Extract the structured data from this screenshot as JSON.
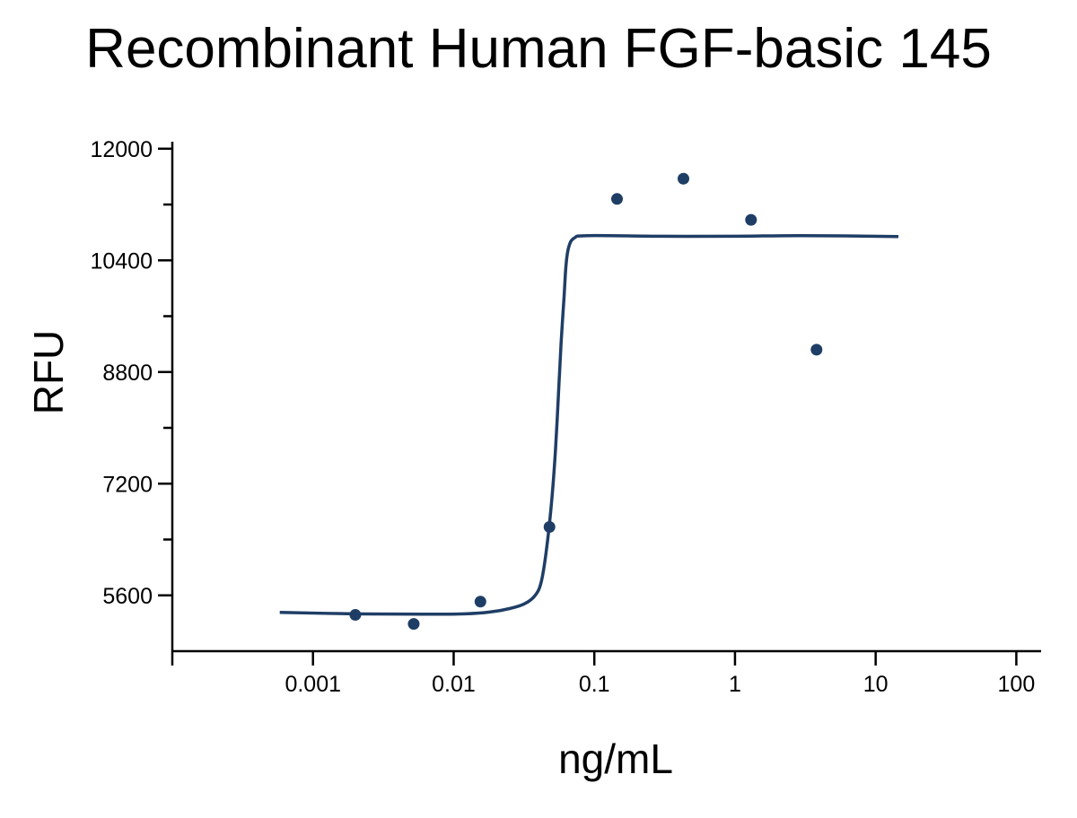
{
  "chart_data": {
    "type": "scatter",
    "title": "Recombinant Human FGF-basic 145",
    "xlabel": "ng/mL",
    "ylabel": "RFU",
    "x_scale": "log",
    "xlim": [
      0.0001,
      150
    ],
    "ylim": [
      4800,
      12100
    ],
    "x_ticks": [
      {
        "value": 0.001,
        "label": "0.001"
      },
      {
        "value": 0.01,
        "label": "0.01"
      },
      {
        "value": 0.1,
        "label": "0.1"
      },
      {
        "value": 1,
        "label": "1"
      },
      {
        "value": 10,
        "label": "10"
      },
      {
        "value": 100,
        "label": "100"
      }
    ],
    "y_ticks": [
      {
        "value": 5600,
        "label": "5600"
      },
      {
        "value": 7200,
        "label": "7200"
      },
      {
        "value": 8800,
        "label": "8800"
      },
      {
        "value": 10400,
        "label": "10400"
      },
      {
        "value": 12000,
        "label": "12000"
      }
    ],
    "y_minor_ticks": [
      6400,
      8000,
      9600,
      11200
    ],
    "points": [
      {
        "x": 0.002,
        "y": 5320
      },
      {
        "x": 0.0052,
        "y": 5190
      },
      {
        "x": 0.0155,
        "y": 5510
      },
      {
        "x": 0.048,
        "y": 6580
      },
      {
        "x": 0.145,
        "y": 11280
      },
      {
        "x": 0.43,
        "y": 11570
      },
      {
        "x": 1.3,
        "y": 10980
      },
      {
        "x": 3.8,
        "y": 9120
      }
    ],
    "fit_curve": [
      {
        "x": 0.00058,
        "y": 5355
      },
      {
        "x": 0.002,
        "y": 5335
      },
      {
        "x": 0.006,
        "y": 5330
      },
      {
        "x": 0.012,
        "y": 5335
      },
      {
        "x": 0.018,
        "y": 5360
      },
      {
        "x": 0.025,
        "y": 5410
      },
      {
        "x": 0.032,
        "y": 5480
      },
      {
        "x": 0.038,
        "y": 5600
      },
      {
        "x": 0.042,
        "y": 5800
      },
      {
        "x": 0.046,
        "y": 6300
      },
      {
        "x": 0.05,
        "y": 7000
      },
      {
        "x": 0.053,
        "y": 7700
      },
      {
        "x": 0.056,
        "y": 8600
      },
      {
        "x": 0.058,
        "y": 9200
      },
      {
        "x": 0.061,
        "y": 9900
      },
      {
        "x": 0.063,
        "y": 10350
      },
      {
        "x": 0.066,
        "y": 10600
      },
      {
        "x": 0.072,
        "y": 10720
      },
      {
        "x": 0.09,
        "y": 10755
      },
      {
        "x": 0.3,
        "y": 10745
      },
      {
        "x": 1,
        "y": 10745
      },
      {
        "x": 3,
        "y": 10755
      },
      {
        "x": 14.5,
        "y": 10740
      }
    ],
    "colors": {
      "series": "#1f3e66",
      "axis": "#000000"
    },
    "grid": false,
    "legend": "none"
  }
}
